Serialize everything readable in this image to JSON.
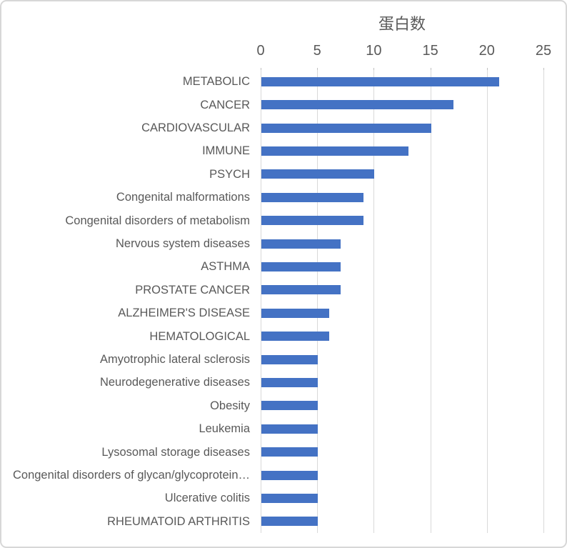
{
  "chart_data": {
    "type": "bar",
    "orientation": "horizontal",
    "title": "蛋白数",
    "categories": [
      "METABOLIC",
      "CANCER",
      "CARDIOVASCULAR",
      "IMMUNE",
      "PSYCH",
      "Congenital malformations",
      "Congenital disorders of metabolism",
      "Nervous system diseases",
      "ASTHMA",
      "PROSTATE CANCER",
      "ALZHEIMER'S DISEASE",
      "HEMATOLOGICAL",
      "Amyotrophic lateral sclerosis",
      "Neurodegenerative diseases",
      "Obesity",
      "Leukemia",
      "Lysosomal storage diseases",
      "Congenital disorders of glycan/glycoprotein…",
      "Ulcerative colitis",
      "RHEUMATOID ARTHRITIS"
    ],
    "values": [
      21,
      17,
      15,
      13,
      10,
      9,
      9,
      7,
      7,
      7,
      6,
      6,
      5,
      5,
      5,
      5,
      5,
      5,
      5,
      5
    ],
    "xlabel": "",
    "ylabel": "",
    "xlim": [
      0,
      25
    ],
    "x_ticks": [
      0,
      5,
      10,
      15,
      20,
      25
    ],
    "axis_position": "top",
    "grid": true,
    "legend": false,
    "bar_color": "#4472C4",
    "gridline_color": "#D9D9D9",
    "tick_color": "#BFBFBF",
    "text_color": "#595959",
    "border_color": "#D7D7D7"
  }
}
